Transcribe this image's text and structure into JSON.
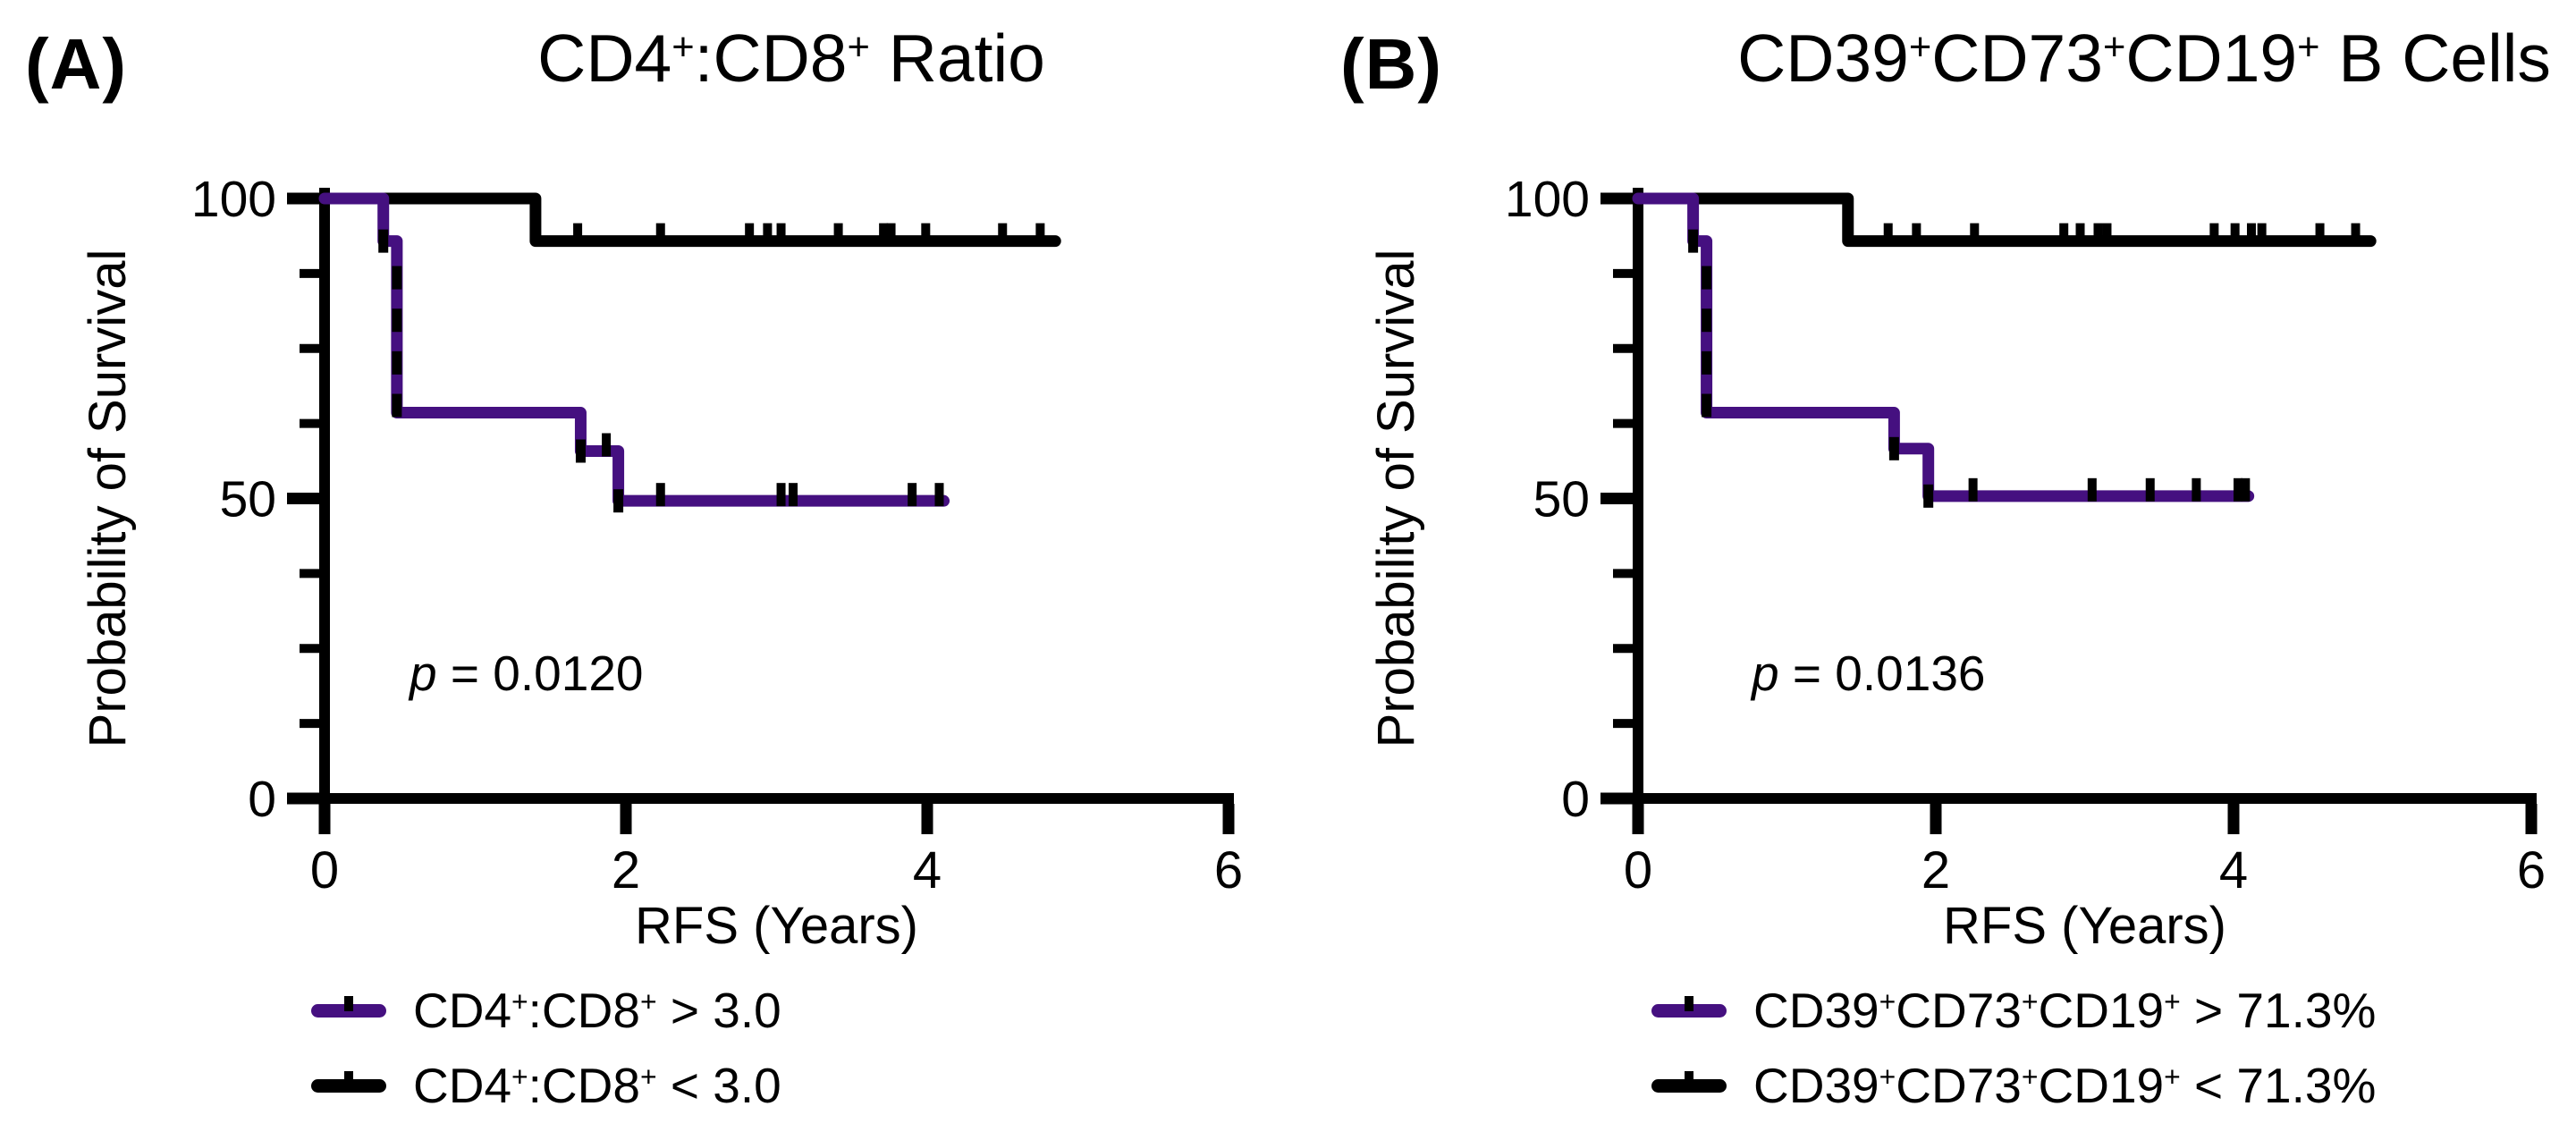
{
  "figure": {
    "background": "#ffffff",
    "description": "Kaplan-Meier recurrence-free survival curves, two panels"
  },
  "colors": {
    "purple": "#451080",
    "black": "#000000"
  },
  "chart_data": [
    {
      "type": "line",
      "subtype": "kaplan-meier-step",
      "panel_label": "(A)",
      "title_segments": [
        {
          "t": "CD4"
        },
        {
          "t": "+",
          "sup": true
        },
        {
          "t": ":CD8"
        },
        {
          "t": "+",
          "sup": true
        },
        {
          "t": " Ratio"
        }
      ],
      "p_label": {
        "italic": "p",
        "rest": " = 0.0120"
      },
      "x_axis": {
        "label": "RFS (Years)",
        "major_ticks": [
          0,
          2,
          4,
          6
        ],
        "range": [
          0,
          6
        ],
        "minor_ticks": []
      },
      "y_axis": {
        "label": "Probability of Survival",
        "major_ticks": [
          100,
          50,
          0
        ],
        "minor_ticks": [
          87.5,
          75,
          62.5,
          37.5,
          25,
          12.5
        ],
        "range": [
          0,
          100
        ]
      },
      "grid": false,
      "legend_position": "below",
      "series": [
        {
          "name": "CD4+:CD8+ < 3.0",
          "color": "black",
          "steps": [
            [
              0,
              100
            ],
            [
              1.4,
              100
            ],
            [
              1.4,
              92.9
            ],
            [
              4.85,
              92.9
            ]
          ],
          "censor_x": [
            1.68,
            2.23,
            2.82,
            2.94,
            3.03,
            3.41,
            3.71,
            3.76,
            3.99,
            4.5,
            4.75
          ],
          "event_dashes": []
        },
        {
          "name": "CD4+:CD8+ > 3.0",
          "color": "purple",
          "steps": [
            [
              0,
              100
            ],
            [
              0.39,
              100
            ],
            [
              0.39,
              92.9
            ],
            [
              0.48,
              92.9
            ],
            [
              0.48,
              64.3
            ],
            [
              1.7,
              64.3
            ],
            [
              1.7,
              57.9
            ],
            [
              1.95,
              57.9
            ],
            [
              1.95,
              49.6
            ],
            [
              4.11,
              49.6
            ]
          ],
          "censor_x": [
            1.87,
            2.23,
            3.03,
            3.11,
            3.9,
            4.08
          ],
          "event_dashes": [
            [
              0.39,
              92.9
            ],
            [
              0.48,
              86.8
            ],
            [
              0.48,
              79.7
            ],
            [
              0.48,
              72.6
            ],
            [
              0.48,
              65.5
            ],
            [
              1.7,
              57.9
            ],
            [
              1.95,
              49.6
            ]
          ]
        }
      ],
      "legend": [
        {
          "color": "purple",
          "segments": [
            {
              "t": "CD4"
            },
            {
              "t": "+",
              "sup": true
            },
            {
              "t": ":CD8"
            },
            {
              "t": "+",
              "sup": true
            },
            {
              "t": " > 3.0"
            }
          ]
        },
        {
          "color": "black",
          "segments": [
            {
              "t": "CD4"
            },
            {
              "t": "+",
              "sup": true
            },
            {
              "t": ":CD8"
            },
            {
              "t": "+",
              "sup": true
            },
            {
              "t": " < 3.0"
            }
          ]
        }
      ]
    },
    {
      "type": "line",
      "subtype": "kaplan-meier-step",
      "panel_label": "(B)",
      "title_segments": [
        {
          "t": "CD39"
        },
        {
          "t": "+",
          "sup": true
        },
        {
          "t": "CD73"
        },
        {
          "t": "+",
          "sup": true
        },
        {
          "t": "CD19"
        },
        {
          "t": "+",
          "sup": true
        },
        {
          "t": " B Cells"
        }
      ],
      "p_label": {
        "italic": "p",
        "rest": " = 0.0136"
      },
      "x_axis": {
        "label": "RFS (Years)",
        "major_ticks": [
          0,
          2,
          4,
          6
        ],
        "range": [
          0,
          6
        ],
        "minor_ticks": []
      },
      "y_axis": {
        "label": "Probability of Survival",
        "major_ticks": [
          100,
          50,
          0
        ],
        "minor_ticks": [
          87.5,
          75,
          62.5,
          37.5,
          25,
          12.5
        ],
        "range": [
          0,
          100
        ]
      },
      "grid": false,
      "legend_position": "below",
      "series": [
        {
          "name": "CD39+CD73+CD19+ < 71.3%",
          "color": "black",
          "steps": [
            [
              0,
              100
            ],
            [
              1.41,
              100
            ],
            [
              1.41,
              92.9
            ],
            [
              4.92,
              92.9
            ]
          ],
          "censor_x": [
            1.68,
            1.87,
            2.26,
            2.86,
            2.97,
            3.09,
            3.15,
            3.87,
            4.01,
            4.12,
            4.19,
            4.58,
            4.82
          ],
          "event_dashes": []
        },
        {
          "name": "CD39+CD73+CD19+ > 71.3%",
          "color": "purple",
          "steps": [
            [
              0,
              100
            ],
            [
              0.37,
              100
            ],
            [
              0.37,
              92.9
            ],
            [
              0.46,
              92.9
            ],
            [
              0.46,
              64.3
            ],
            [
              1.72,
              64.3
            ],
            [
              1.72,
              58.3
            ],
            [
              1.95,
              58.3
            ],
            [
              1.95,
              50.4
            ],
            [
              4.1,
              50.4
            ]
          ],
          "censor_x": [
            2.25,
            3.05,
            3.44,
            3.75,
            4.03,
            4.08
          ],
          "event_dashes": [
            [
              0.37,
              92.9
            ],
            [
              0.46,
              86.8
            ],
            [
              0.46,
              79.7
            ],
            [
              0.46,
              72.6
            ],
            [
              0.46,
              65.5
            ],
            [
              1.72,
              58.3
            ],
            [
              1.95,
              50.4
            ]
          ]
        }
      ],
      "legend": [
        {
          "color": "purple",
          "segments": [
            {
              "t": "CD39"
            },
            {
              "t": "+",
              "sup": true
            },
            {
              "t": "CD73"
            },
            {
              "t": "+",
              "sup": true
            },
            {
              "t": "CD19"
            },
            {
              "t": "+",
              "sup": true
            },
            {
              "t": " > 71.3%"
            }
          ]
        },
        {
          "color": "black",
          "segments": [
            {
              "t": "CD39"
            },
            {
              "t": "+",
              "sup": true
            },
            {
              "t": "CD73"
            },
            {
              "t": "+",
              "sup": true
            },
            {
              "t": "CD19"
            },
            {
              "t": "+",
              "sup": true
            },
            {
              "t": " < 71.3%"
            }
          ]
        }
      ]
    }
  ]
}
